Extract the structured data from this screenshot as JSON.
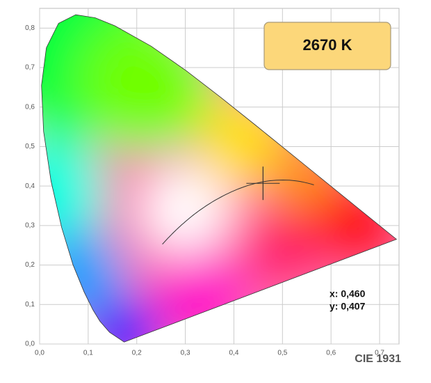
{
  "chart_data": {
    "type": "scatter",
    "cct_label": "2670 K",
    "footer": "CIE 1931",
    "point": {
      "x": 0.46,
      "y": 0.407,
      "x_label": "x: 0,460",
      "y_label": "y: 0,407"
    },
    "xlim": [
      0,
      0.74
    ],
    "ylim": [
      0,
      0.85
    ],
    "xticks": [
      {
        "value": 0,
        "label": "0,0"
      },
      {
        "value": 0.1,
        "label": "0,1"
      },
      {
        "value": 0.2,
        "label": "0,2"
      },
      {
        "value": 0.3,
        "label": "0,3"
      },
      {
        "value": 0.4,
        "label": "0,4"
      },
      {
        "value": 0.5,
        "label": "0,5"
      },
      {
        "value": 0.6,
        "label": "0,6"
      },
      {
        "value": 0.7,
        "label": "0,7"
      }
    ],
    "yticks": [
      {
        "value": 0,
        "label": "0,0"
      },
      {
        "value": 0.1,
        "label": "0,1"
      },
      {
        "value": 0.2,
        "label": "0,2"
      },
      {
        "value": 0.3,
        "label": "0,3"
      },
      {
        "value": 0.4,
        "label": "0,4"
      },
      {
        "value": 0.5,
        "label": "0,5"
      },
      {
        "value": 0.6,
        "label": "0,6"
      },
      {
        "value": 0.7,
        "label": "0,7"
      },
      {
        "value": 0.8,
        "label": "0,8"
      }
    ],
    "grid": true
  }
}
